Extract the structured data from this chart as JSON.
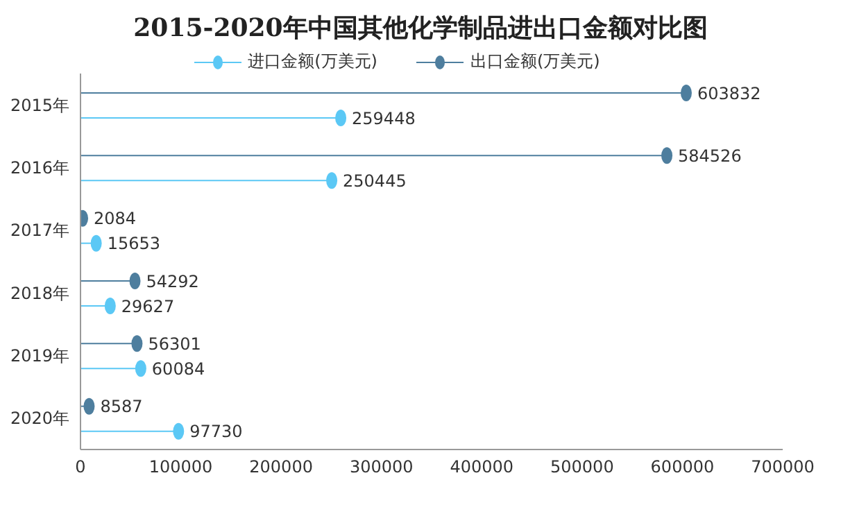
{
  "chart_data": {
    "type": "lollipop",
    "orientation": "horizontal",
    "title": "2015-2020年中国其他化学制品进出口金额对比图",
    "categories": [
      "2015年",
      "2016年",
      "2017年",
      "2018年",
      "2019年",
      "2020年"
    ],
    "series": [
      {
        "name": "进口金额(万美元)",
        "color": "#5bc8f5",
        "values": [
          259448,
          250445,
          15653,
          29627,
          60084,
          97730
        ]
      },
      {
        "name": "出口金额(万美元)",
        "color": "#4e7e9e",
        "values": [
          603832,
          584526,
          2084,
          54292,
          56301,
          8587
        ]
      }
    ],
    "xlim": [
      0,
      700000
    ],
    "xticks": [
      0,
      100000,
      200000,
      300000,
      400000,
      500000,
      600000,
      700000
    ],
    "data_labels": true,
    "legend": "top",
    "marker": "circle"
  }
}
